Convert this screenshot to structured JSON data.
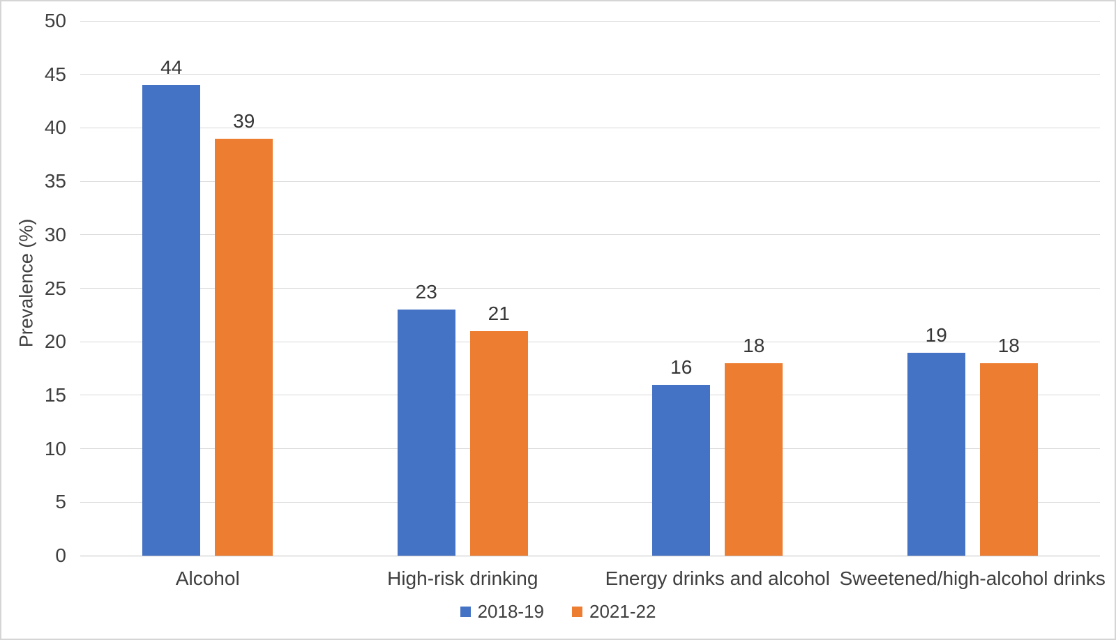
{
  "chart_data": {
    "type": "bar",
    "categories": [
      "Alcohol",
      "High-risk drinking",
      "Energy drinks and alcohol",
      "Sweetened/high-alcohol drinks"
    ],
    "series": [
      {
        "name": "2018-19",
        "color": "#4472C4",
        "values": [
          44,
          23,
          16,
          19
        ]
      },
      {
        "name": "2021-22",
        "color": "#ED7D31",
        "values": [
          39,
          21,
          18,
          18
        ]
      }
    ],
    "title": "",
    "xlabel": "",
    "ylabel": "Prevalence (%)",
    "ylim": [
      0,
      50
    ],
    "yticks": [
      0,
      5,
      10,
      15,
      20,
      25,
      30,
      35,
      40,
      45,
      50
    ],
    "grid": true,
    "data_labels": true,
    "legend_position": "bottom"
  },
  "colors": {
    "background": "#FFFFFF",
    "gridline": "#D9D9D9",
    "axis_line": "#BFBFBF",
    "text": "#3F3F3F",
    "frame_border": "#D5D5D5"
  }
}
